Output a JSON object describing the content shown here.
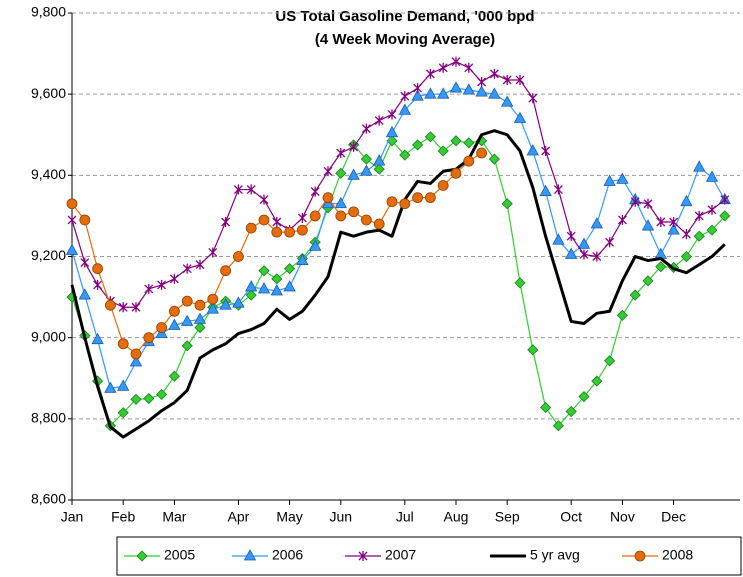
{
  "chart_data": {
    "type": "line",
    "title": "US Total Gasoline Demand, '000 bpd",
    "subtitle": "(4 Week Moving Average)",
    "categories": [
      "Jan",
      null,
      null,
      null,
      "Feb",
      null,
      null,
      null,
      "Mar",
      null,
      null,
      null,
      null,
      "Apr",
      null,
      null,
      null,
      "May",
      null,
      null,
      null,
      "Jun",
      null,
      null,
      null,
      null,
      "Jul",
      null,
      null,
      null,
      "Aug",
      null,
      null,
      null,
      "Sep",
      null,
      null,
      null,
      null,
      "Oct",
      null,
      null,
      null,
      "Nov",
      null,
      null,
      null,
      "Dec",
      null,
      null,
      null,
      null
    ],
    "ylim": [
      8600,
      9800
    ],
    "yticks": [
      {
        "value": 8600,
        "label": "8,600"
      },
      {
        "value": 8800,
        "label": "8,800"
      },
      {
        "value": 9000,
        "label": "9,000"
      },
      {
        "value": 9200,
        "label": "9,200"
      },
      {
        "value": 9400,
        "label": "9,400"
      },
      {
        "value": 9600,
        "label": "9,600"
      },
      {
        "value": 9800,
        "label": "9,800"
      }
    ],
    "grid": true,
    "legend": "bottom",
    "series": [
      {
        "name": "2005",
        "color": "#33cc33",
        "marker": "diamond",
        "values": [
          9100,
          9005,
          8893,
          8783,
          8815,
          8848,
          8850,
          8860,
          8905,
          8980,
          9025,
          9075,
          9090,
          9080,
          9105,
          9165,
          9145,
          9170,
          9195,
          9235,
          9320,
          9405,
          9475,
          9440,
          9415,
          9485,
          9450,
          9475,
          9495,
          9460,
          9485,
          9480,
          9485,
          9440,
          9330,
          9135,
          8970,
          8828,
          8783,
          8818,
          8855,
          8893,
          8943,
          9055,
          9105,
          9140,
          9175,
          9173,
          9200,
          9250,
          9265,
          9300
        ]
      },
      {
        "name": "2006",
        "color": "#3399ff",
        "marker": "triangle",
        "values": [
          9215,
          9105,
          8995,
          8875,
          8880,
          8940,
          8990,
          9010,
          9030,
          9040,
          9045,
          9070,
          9080,
          9085,
          9125,
          9120,
          9115,
          9125,
          9190,
          9225,
          9330,
          9330,
          9400,
          9410,
          9435,
          9505,
          9560,
          9595,
          9600,
          9600,
          9615,
          9610,
          9605,
          9600,
          9580,
          9540,
          9460,
          9360,
          9240,
          9205,
          9230,
          9280,
          9385,
          9390,
          9340,
          9275,
          9205,
          9265,
          9335,
          9420,
          9395,
          9340
        ]
      },
      {
        "name": "2007",
        "color": "#800080",
        "marker": "star",
        "values": [
          9290,
          9185,
          9130,
          9090,
          9075,
          9075,
          9120,
          9130,
          9145,
          9170,
          9180,
          9210,
          9285,
          9365,
          9365,
          9340,
          9285,
          9265,
          9295,
          9360,
          9410,
          9455,
          9470,
          9515,
          9535,
          9550,
          9595,
          9615,
          9650,
          9665,
          9680,
          9665,
          9630,
          9650,
          9635,
          9635,
          9590,
          9460,
          9365,
          9250,
          9205,
          9200,
          9235,
          9290,
          9335,
          9330,
          9285,
          9285,
          9255,
          9300,
          9315,
          9340
        ]
      },
      {
        "name": "5 yr avg",
        "color": "#000000",
        "line_width": 3,
        "values": [
          9130,
          9000,
          8880,
          8780,
          8755,
          8775,
          8795,
          8820,
          8840,
          8870,
          8950,
          8970,
          8985,
          9010,
          9020,
          9035,
          9070,
          9045,
          9065,
          9105,
          9150,
          9260,
          9250,
          9260,
          9265,
          9250,
          9340,
          9385,
          9380,
          9410,
          9415,
          9440,
          9500,
          9510,
          9500,
          9460,
          9370,
          9250,
          9145,
          9040,
          9035,
          9060,
          9065,
          9140,
          9200,
          9190,
          9195,
          9170,
          9160,
          9180,
          9200,
          9230
        ]
      },
      {
        "name": "2008",
        "color": "#e46c0a",
        "marker": "circle",
        "values": [
          9330,
          9290,
          9170,
          9080,
          8985,
          8960,
          9000,
          9025,
          9065,
          9090,
          9080,
          9095,
          9165,
          9200,
          9270,
          9290,
          9260,
          9260,
          9265,
          9300,
          9345,
          9300,
          9310,
          9290,
          9280,
          9335,
          9330,
          9345,
          9345,
          9375,
          9405,
          9435,
          9455,
          null,
          null,
          null,
          null,
          null,
          null,
          null,
          null,
          null,
          null,
          null,
          null,
          null,
          null,
          null,
          null,
          null,
          null,
          null
        ]
      }
    ]
  }
}
